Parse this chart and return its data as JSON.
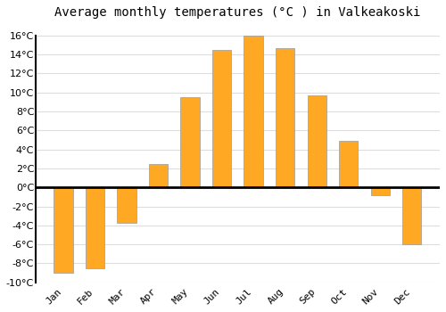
{
  "title": "Average monthly temperatures (°C ) in Valkeakoski",
  "months": [
    "Jan",
    "Feb",
    "Mar",
    "Apr",
    "May",
    "Jun",
    "Jul",
    "Aug",
    "Sep",
    "Oct",
    "Nov",
    "Dec"
  ],
  "temperatures": [
    -9.0,
    -8.5,
    -3.7,
    2.5,
    9.5,
    14.5,
    16.0,
    14.7,
    9.7,
    4.9,
    -0.8,
    -6.0
  ],
  "bar_color": "#FFA824",
  "bar_edge_color": "#999999",
  "ylim": [
    -10,
    17
  ],
  "yticks": [
    -10,
    -8,
    -6,
    -4,
    -2,
    0,
    2,
    4,
    6,
    8,
    10,
    12,
    14,
    16
  ],
  "bg_color": "#ffffff",
  "grid_color": "#dddddd",
  "title_fontsize": 10,
  "tick_fontsize": 8
}
